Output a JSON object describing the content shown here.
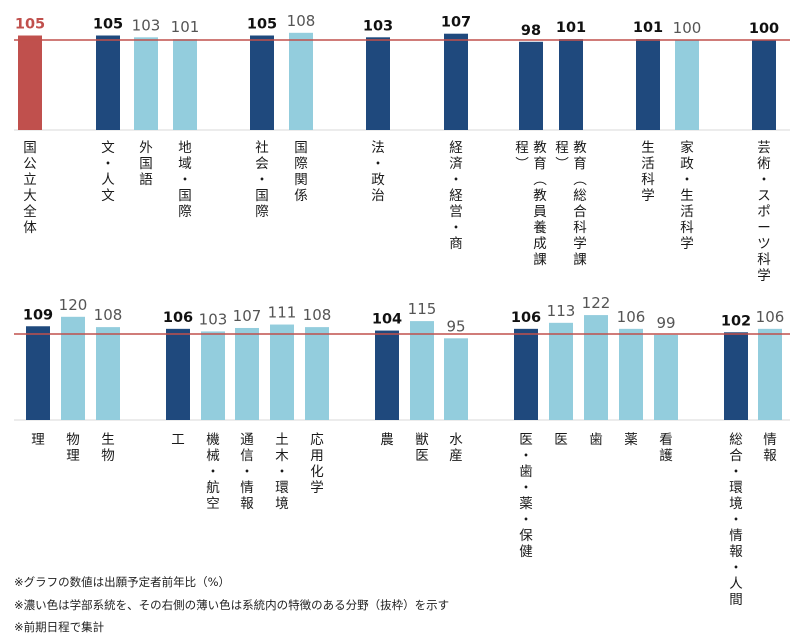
{
  "chart_data": [
    {
      "type": "bar",
      "reference_line": 100,
      "categories": [
        "国公立大全体",
        "文・人文",
        "外国語",
        "地域・国際",
        "社会・国際",
        "国際関係",
        "法・政治",
        "経済・経営・商",
        "教育（教員養成課程）",
        "教育（総合科学課程）",
        "生活科学",
        "家政・生活科学",
        "芸術・スポーツ科学"
      ],
      "values": [
        105,
        105,
        103,
        101,
        105,
        108,
        103,
        107,
        98,
        101,
        101,
        100,
        100
      ],
      "kinds": [
        "total",
        "main",
        "sub",
        "sub",
        "main",
        "sub",
        "main",
        "main",
        "main",
        "main",
        "main",
        "sub",
        "main"
      ]
    },
    {
      "type": "bar",
      "reference_line": 100,
      "categories": [
        "理",
        "物理",
        "生物",
        "工",
        "機械・航空",
        "通信・情報",
        "土木・環境",
        "応用化学",
        "農",
        "獣医",
        "水産",
        "医・歯・薬・保健",
        "医",
        "歯",
        "薬",
        "看護",
        "総合・環境・情報・人間",
        "情報"
      ],
      "values": [
        109,
        120,
        108,
        106,
        103,
        107,
        111,
        108,
        104,
        115,
        95,
        106,
        113,
        122,
        106,
        99,
        102,
        106
      ],
      "kinds": [
        "main",
        "sub",
        "sub",
        "main",
        "sub",
        "sub",
        "sub",
        "sub",
        "main",
        "sub",
        "sub",
        "main",
        "sub",
        "sub",
        "sub",
        "sub",
        "main",
        "sub"
      ]
    }
  ],
  "colors": {
    "total": "#c0504d",
    "main": "#1f497d",
    "sub": "#93cddd",
    "line": "#c0504d"
  },
  "notes": [
    "※グラフの数値は出願予定者前年比（%）",
    "※濃い色は学部系統を、その右側の薄い色は系統内の特徴のある分野（抜枠）を示す",
    "※前期日程で集計"
  ]
}
